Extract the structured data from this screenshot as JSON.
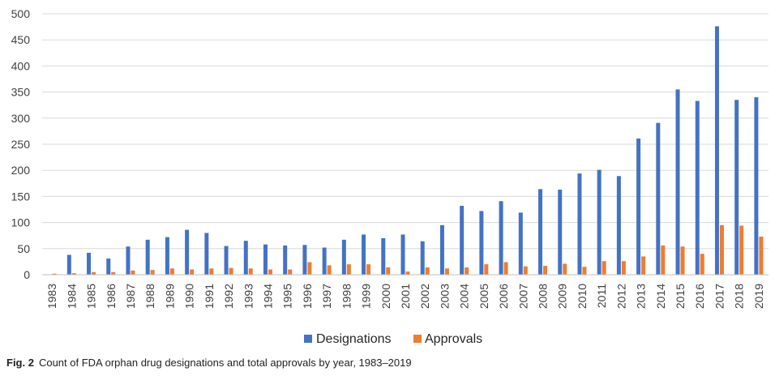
{
  "caption": {
    "figure_label": "Fig. 2",
    "text": "Count of FDA orphan drug designations and total approvals by year, 1983–2019"
  },
  "colors": {
    "designations": "#4472C4",
    "approvals": "#ED7D31",
    "grid": "#d9d9d9"
  },
  "chart_data": {
    "type": "bar",
    "title": "",
    "xlabel": "",
    "ylabel": "",
    "ylim": [
      0,
      500
    ],
    "yticks": [
      0,
      50,
      100,
      150,
      200,
      250,
      300,
      350,
      400,
      450,
      500
    ],
    "grid": true,
    "legend_position": "bottom",
    "categories": [
      "1983",
      "1984",
      "1985",
      "1986",
      "1987",
      "1988",
      "1989",
      "1990",
      "1991",
      "1992",
      "1993",
      "1994",
      "1995",
      "1996",
      "1997",
      "1998",
      "1999",
      "2000",
      "2001",
      "2002",
      "2003",
      "2004",
      "2005",
      "2006",
      "2007",
      "2008",
      "2009",
      "2010",
      "2011",
      "2012",
      "2013",
      "2014",
      "2015",
      "2016",
      "2017",
      "2018",
      "2019"
    ],
    "series": [
      {
        "name": "Designations",
        "values": [
          0,
          38,
          42,
          31,
          54,
          67,
          72,
          86,
          80,
          55,
          65,
          58,
          56,
          57,
          52,
          67,
          77,
          70,
          77,
          64,
          95,
          132,
          122,
          141,
          119,
          164,
          163,
          194,
          201,
          189,
          261,
          291,
          355,
          333,
          476,
          335,
          340
        ]
      },
      {
        "name": "Approvals",
        "values": [
          2,
          3,
          5,
          5,
          8,
          9,
          12,
          10,
          12,
          13,
          12,
          10,
          10,
          24,
          18,
          20,
          20,
          14,
          6,
          14,
          12,
          14,
          20,
          24,
          16,
          17,
          21,
          15,
          26,
          26,
          35,
          56,
          54,
          40,
          95,
          94,
          73
        ]
      }
    ]
  }
}
